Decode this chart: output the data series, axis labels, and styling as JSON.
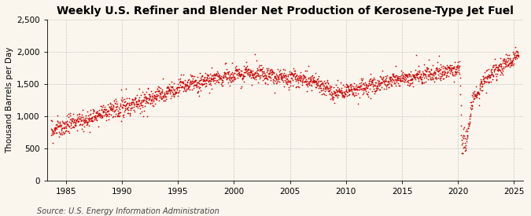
{
  "title": "Weekly U.S. Refiner and Blender Net Production of Kerosene-Type Jet Fuel",
  "ylabel": "Thousand Barrels per Day",
  "source": "Source: U.S. Energy Information Administration",
  "xlim": [
    1983.3,
    2025.8
  ],
  "ylim": [
    0,
    2500
  ],
  "yticks": [
    0,
    500,
    1000,
    1500,
    2000,
    2500
  ],
  "xticks": [
    1985,
    1990,
    1995,
    2000,
    2005,
    2010,
    2015,
    2020,
    2025
  ],
  "dot_color": "#CC0000",
  "dot_size": 1.5,
  "background_color": "#FAF6ED",
  "grid_color": "#BBBBBB",
  "title_fontsize": 10,
  "ylabel_fontsize": 7.5,
  "source_fontsize": 7,
  "tick_fontsize": 7.5
}
